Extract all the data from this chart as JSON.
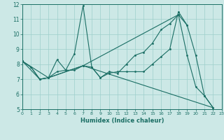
{
  "xlabel": "Humidex (Indice chaleur)",
  "bg_color": "#cce8e6",
  "grid_color": "#9ecfcb",
  "line_color": "#1a6e64",
  "xlim": [
    0,
    23
  ],
  "ylim": [
    5,
    12
  ],
  "xticks": [
    0,
    1,
    2,
    3,
    4,
    5,
    6,
    7,
    8,
    9,
    10,
    11,
    12,
    13,
    14,
    15,
    16,
    17,
    18,
    19,
    20,
    21,
    22,
    23
  ],
  "yticks": [
    5,
    6,
    7,
    8,
    9,
    10,
    11,
    12
  ],
  "line1_x": [
    0,
    1,
    2,
    3,
    4,
    5,
    6,
    7,
    8,
    9,
    10,
    11,
    12,
    13,
    14,
    15,
    16,
    17,
    18,
    19,
    20,
    21,
    22
  ],
  "line1_y": [
    8.2,
    7.8,
    7.0,
    7.1,
    7.5,
    7.6,
    7.6,
    7.9,
    7.8,
    7.1,
    7.5,
    7.4,
    8.0,
    8.6,
    8.8,
    9.4,
    10.3,
    10.7,
    11.3,
    8.6,
    6.5,
    5.9,
    5.1
  ],
  "line2_x": [
    0,
    1,
    2,
    3,
    4,
    5,
    6,
    7,
    8,
    9,
    10,
    11,
    12,
    13,
    14,
    15,
    16,
    17,
    18,
    19
  ],
  "line2_y": [
    8.2,
    7.8,
    7.0,
    7.1,
    8.3,
    7.6,
    8.7,
    11.9,
    7.8,
    7.1,
    7.4,
    7.5,
    7.5,
    7.5,
    7.5,
    8.0,
    8.5,
    9.0,
    11.5,
    10.6
  ],
  "line3_x": [
    0,
    2,
    3,
    7,
    18,
    19,
    20,
    21,
    22
  ],
  "line3_y": [
    8.2,
    7.0,
    7.1,
    7.9,
    11.3,
    10.6,
    8.6,
    5.9,
    5.1
  ],
  "line4_x": [
    0,
    3,
    7,
    22
  ],
  "line4_y": [
    8.2,
    7.1,
    7.9,
    5.1
  ]
}
